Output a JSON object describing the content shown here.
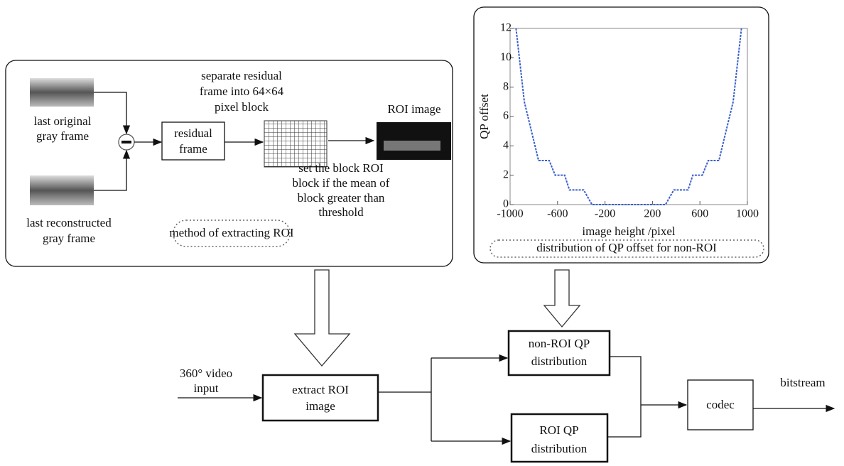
{
  "diagram": {
    "roi_panel": {
      "last_original": [
        "last original",
        "gray frame"
      ],
      "last_reconstructed": [
        "last reconstructed",
        "gray frame"
      ],
      "residual": [
        "residual",
        "frame"
      ],
      "separate": [
        "separate residual",
        "frame into 64×64",
        "pixel block"
      ],
      "roi_image": "ROI image",
      "set_block": [
        "set the block ROI",
        "block if the mean of",
        "block greater than",
        "threshold"
      ],
      "caption": "method of extracting ROI"
    },
    "qp_panel": {
      "caption": "distribution of QP offset for non-ROI"
    },
    "flow": {
      "input": [
        "360° video",
        "input"
      ],
      "extract": [
        "extract ROI",
        "image"
      ],
      "non_roi": [
        "non-ROI QP",
        "distribution"
      ],
      "roi": [
        "ROI QP",
        "distribution"
      ],
      "codec": "codec",
      "output": "bitstream"
    }
  },
  "chart_data": {
    "type": "line",
    "x_label": "image height /pixel",
    "y_label": "QP offset",
    "x": [
      -950,
      -880,
      -760,
      -670,
      -620,
      -540,
      -500,
      -380,
      -310,
      310,
      380,
      500,
      540,
      620,
      670,
      760,
      880,
      950
    ],
    "series": [
      {
        "color": "#3a5fcd",
        "values": [
          12,
          7,
          3,
          3,
          2,
          2,
          1,
          1,
          0,
          0,
          1,
          1,
          2,
          2,
          3,
          3,
          7,
          12
        ]
      }
    ],
    "xlim": [
      -1000,
      1000
    ],
    "ylim": [
      0,
      12
    ],
    "xticks": [
      -1000,
      -600,
      -200,
      200,
      600,
      1000
    ],
    "yticks": [
      0,
      2,
      4,
      6,
      8,
      10,
      12
    ]
  }
}
